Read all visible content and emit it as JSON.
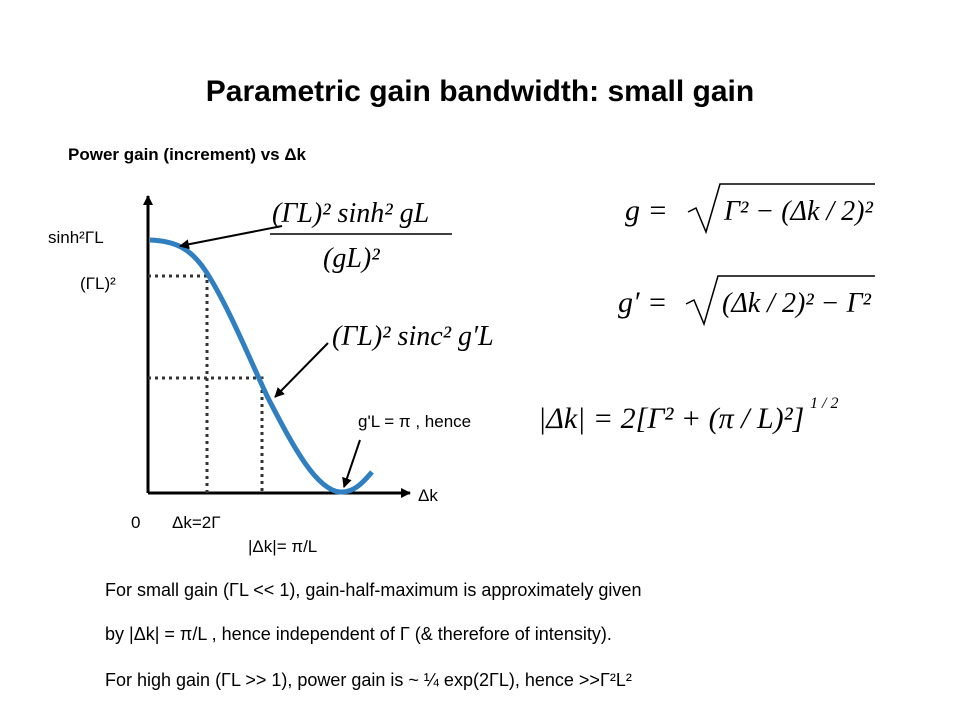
{
  "header": {
    "title": "Parametric gain bandwidth: small gain",
    "subtitle": "Power gain (increment) vs Δk"
  },
  "graph": {
    "y_labels": [
      "sinh²ΓL",
      "(ΓL)²"
    ],
    "x_axis_label": "Δk",
    "x_labels": [
      "0",
      "Δk=2Γ",
      "|Δk|= π/L"
    ],
    "formula_sinh": {
      "numerator": "(ΓL)² sinh² gL",
      "denominator": "(gL)²"
    },
    "formula_sinc": "(ΓL)² sinc² g′L"
  },
  "equations": {
    "g": {
      "lhs": "g =",
      "radicand": "Γ² − (Δk / 2)²"
    },
    "g_prime": {
      "lhs": "g′ =",
      "radicand": "(Δk / 2)² − Γ²"
    },
    "condition": "g'L = π ,  hence",
    "delta_k": "|Δk| = 2[Γ² + (π / L)²]",
    "delta_k_exponent": "1 / 2"
  },
  "body": [
    "For small gain  (ΓL << 1), gain-half-maximum is approximately given",
    "by |Δk| = π/L ,  hence independent of Γ  (& therefore of intensity).",
    "For high gain  (ΓL >> 1), power gain is  ~ ¼ exp(2ΓL), hence >>Γ²L²"
  ]
}
